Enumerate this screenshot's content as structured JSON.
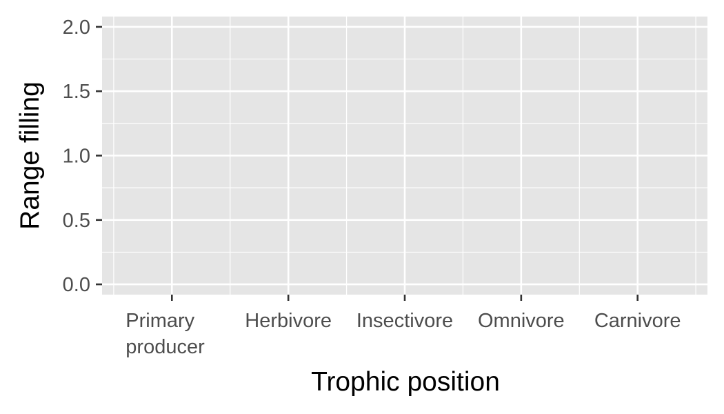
{
  "chart_data": {
    "type": "bar",
    "title": "",
    "xlabel": "Trophic position",
    "ylabel": "Range filling",
    "categories": [
      "Primary producer",
      "Herbivore",
      "Insectivore",
      "Omnivore",
      "Carnivore"
    ],
    "category_lines": [
      [
        "Primary",
        "producer"
      ],
      [
        "Herbivore"
      ],
      [
        "Insectivore"
      ],
      [
        "Omnivore"
      ],
      [
        "Carnivore"
      ]
    ],
    "series": [],
    "ylim": [
      -0.08,
      2.08
    ],
    "yticks": [
      0.0,
      0.5,
      1.0,
      1.5,
      2.0
    ],
    "ytick_labels": [
      "0.0",
      "0.5",
      "1.0",
      "1.5",
      "2.0"
    ],
    "grid": true,
    "legend": "none",
    "colors": {
      "panel": "#e5e5e5",
      "grid": "#ffffff",
      "tick": "#333333",
      "tick_text": "#4d4d4d",
      "title_text": "#000000"
    }
  }
}
